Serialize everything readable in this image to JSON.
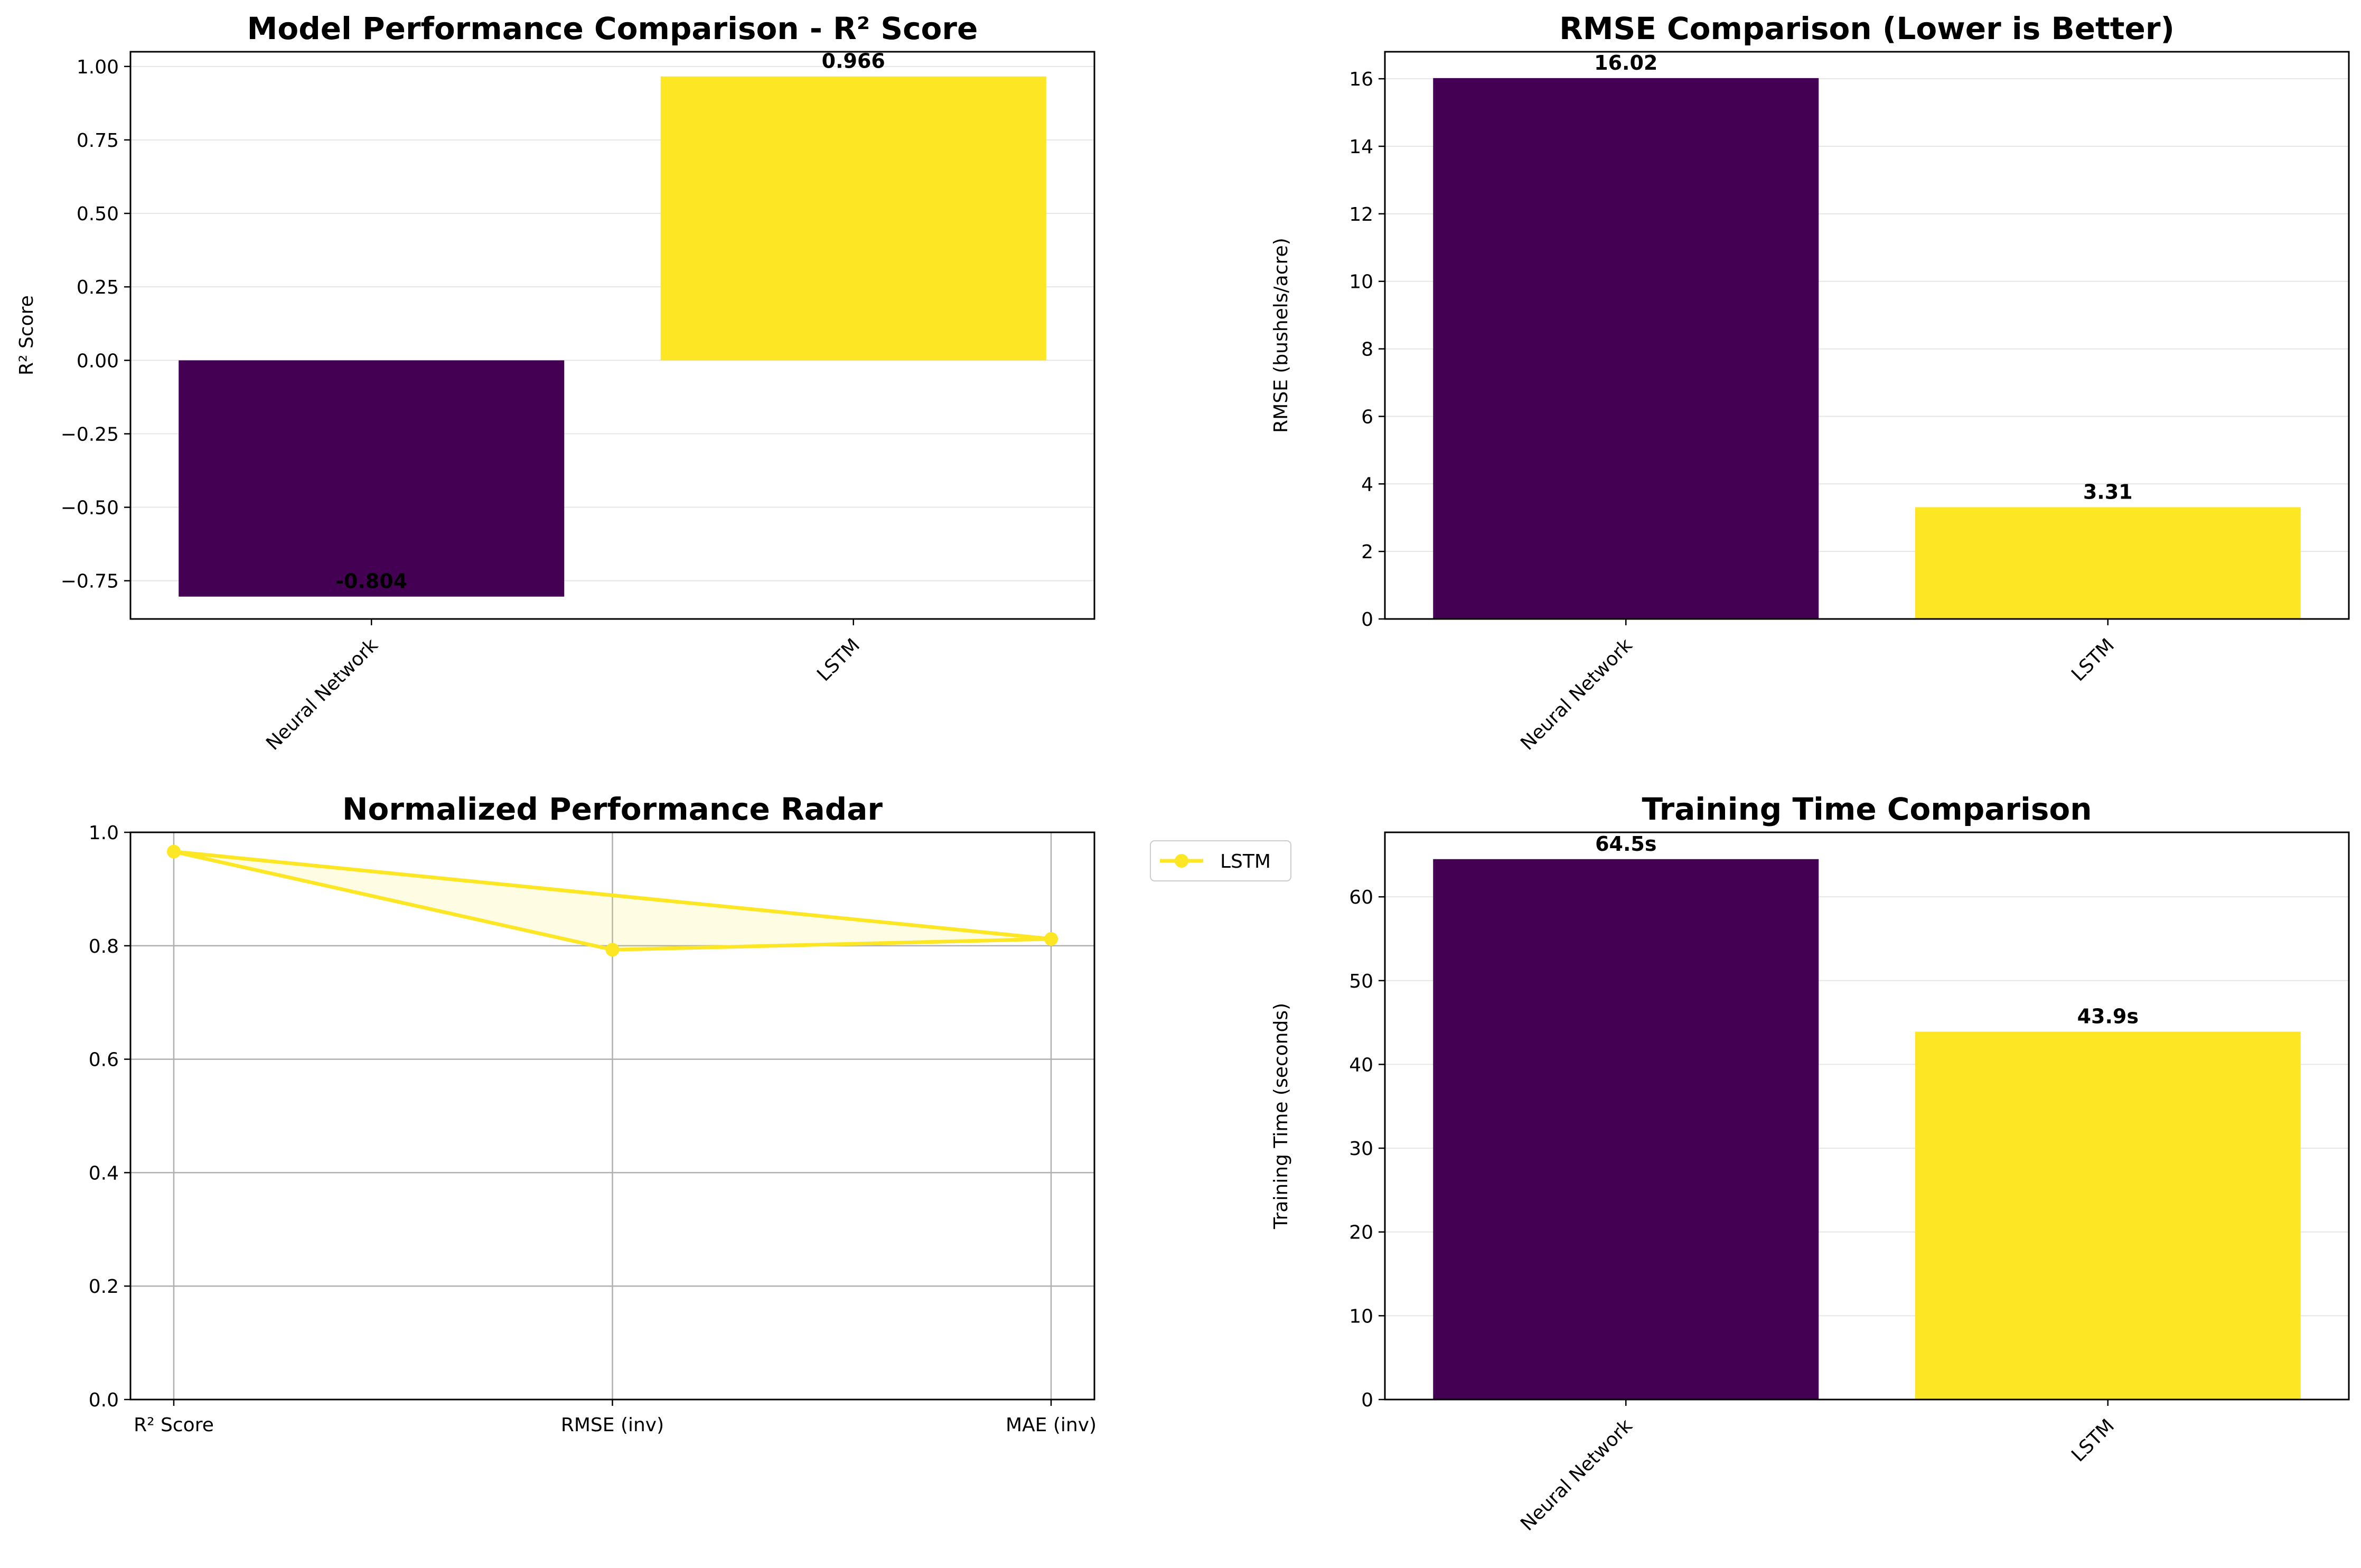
{
  "colors": {
    "nn": "#440154",
    "lstm": "#fde725",
    "axis": "#000000",
    "grid": "#e6e6e6",
    "radar_grid": "#b0b0b0"
  },
  "chart_data": [
    {
      "id": "r2",
      "type": "bar",
      "title": "Model Performance Comparison - R² Score",
      "xlabel": "",
      "ylabel": "R² Score",
      "categories": [
        "Neural Network",
        "LSTM"
      ],
      "values": [
        -0.804,
        0.966
      ],
      "value_labels": [
        "-0.804",
        "0.966"
      ],
      "ylim": [
        -0.88,
        1.05
      ],
      "yticks": [
        -0.75,
        -0.5,
        -0.25,
        0.0,
        0.25,
        0.5,
        0.75,
        1.0
      ],
      "ytick_labels": [
        "−0.75",
        "−0.50",
        "−0.25",
        "0.00",
        "0.25",
        "0.50",
        "0.75",
        "1.00"
      ],
      "grid": "y"
    },
    {
      "id": "rmse",
      "type": "bar",
      "title": "RMSE Comparison (Lower is Better)",
      "xlabel": "",
      "ylabel": "RMSE (bushels/acre)",
      "categories": [
        "Neural Network",
        "LSTM"
      ],
      "values": [
        16.02,
        3.31
      ],
      "value_labels": [
        "16.02",
        "3.31"
      ],
      "ylim": [
        0,
        16.8
      ],
      "yticks": [
        0,
        2,
        4,
        6,
        8,
        10,
        12,
        14,
        16
      ],
      "ytick_labels": [
        "0",
        "2",
        "4",
        "6",
        "8",
        "10",
        "12",
        "14",
        "16"
      ],
      "grid": "y"
    },
    {
      "id": "radar",
      "type": "line",
      "title": "Normalized Performance Radar",
      "xlabel": "",
      "ylabel": "",
      "categories": [
        "R² Score",
        "RMSE (inv)",
        "MAE (inv)"
      ],
      "series": [
        {
          "name": "LSTM",
          "values": [
            0.966,
            0.793,
            0.812
          ]
        }
      ],
      "ylim": [
        0,
        1
      ],
      "yticks": [
        0.0,
        0.2,
        0.4,
        0.6,
        0.8,
        1.0
      ],
      "ytick_labels": [
        "0.0",
        "0.2",
        "0.4",
        "0.6",
        "0.8",
        "1.0"
      ],
      "grid": "both",
      "legend": "outside-top-right"
    },
    {
      "id": "time",
      "type": "bar",
      "title": "Training Time Comparison",
      "xlabel": "",
      "ylabel": "Training Time (seconds)",
      "categories": [
        "Neural Network",
        "LSTM"
      ],
      "values": [
        64.5,
        43.9
      ],
      "value_labels": [
        "64.5s",
        "43.9s"
      ],
      "ylim": [
        0,
        67.7
      ],
      "yticks": [
        0,
        10,
        20,
        30,
        40,
        50,
        60
      ],
      "ytick_labels": [
        "0",
        "10",
        "20",
        "30",
        "40",
        "50",
        "60"
      ],
      "grid": "y"
    }
  ]
}
